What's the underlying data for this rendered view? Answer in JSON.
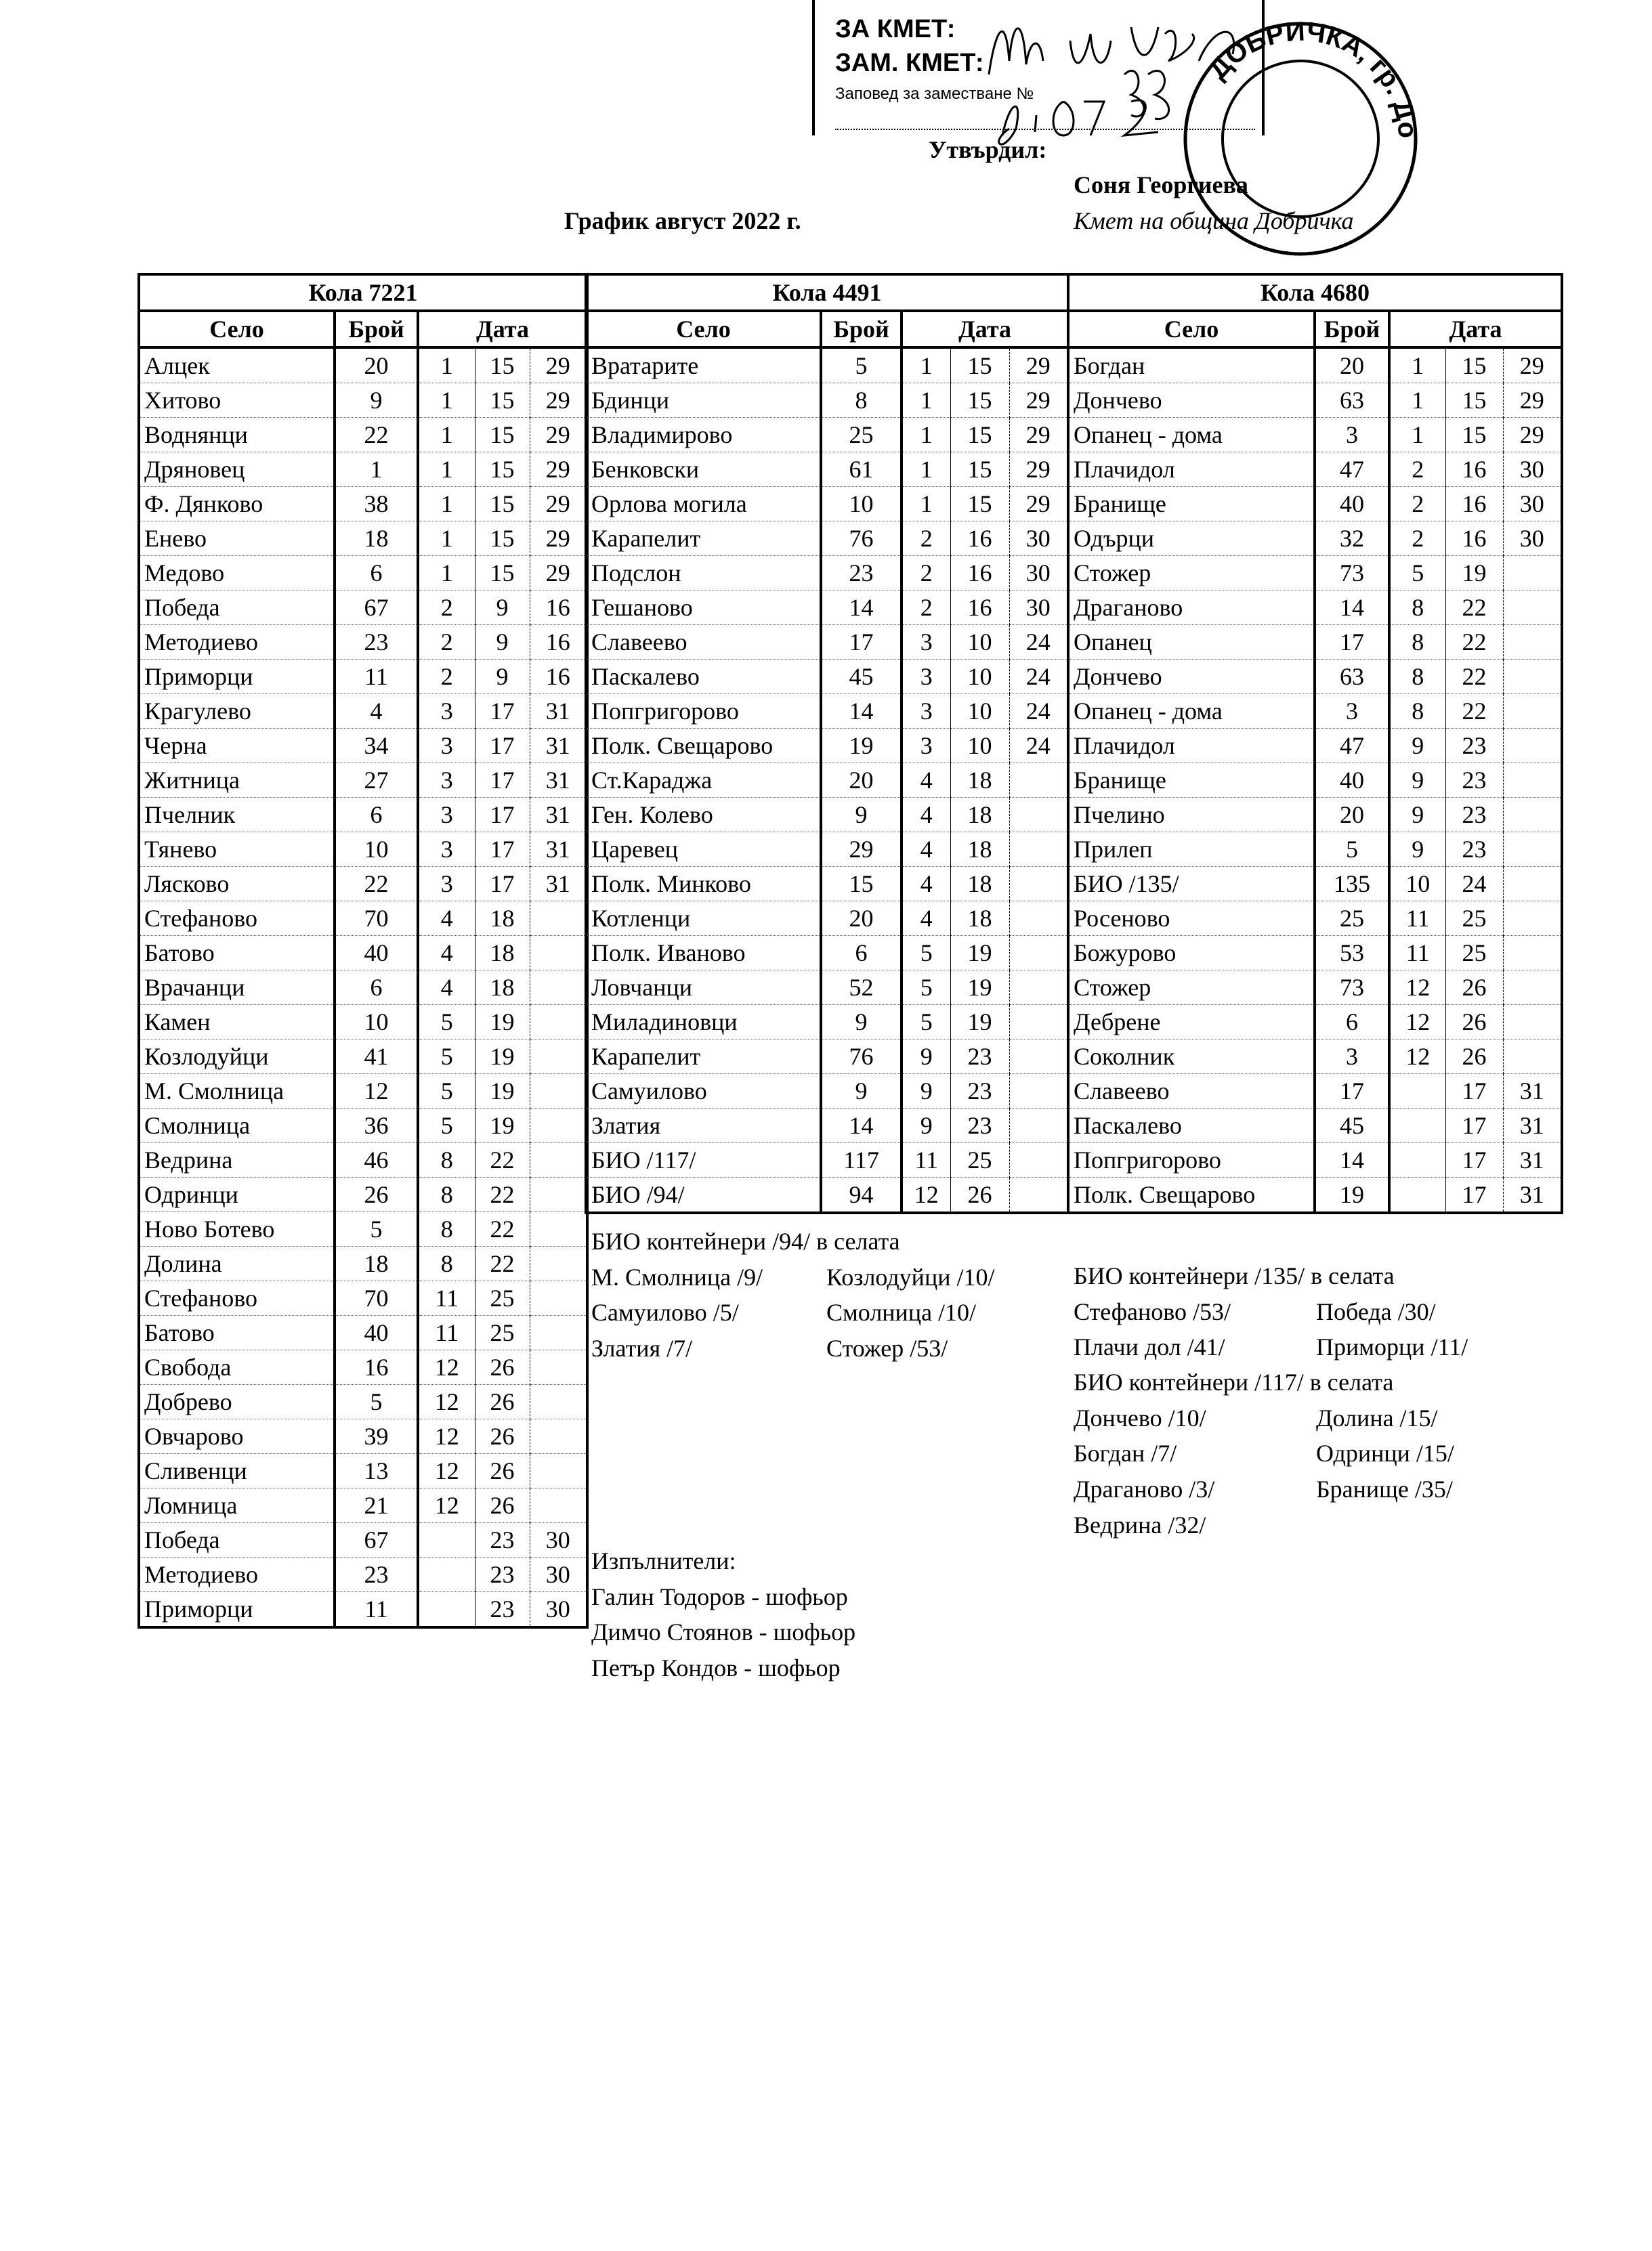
{
  "stamp": {
    "line1": "ЗА КМЕТ:",
    "line2": "ЗАМ. КМЕТ:",
    "line3": "Заповед за заместване №",
    "handwritten_number": "883",
    "handwritten_date": "25.07.22",
    "seal_text": "ДОБРИЧКА, гр. Добрич"
  },
  "header": {
    "approved_label": "Утвърдил:",
    "signer_name": "Соня Георгиева",
    "signer_role": "Кмет  на община Добричка",
    "title": "График август 2022 г."
  },
  "column_headers": {
    "village": "Село",
    "count": "Брой",
    "date": "Дата"
  },
  "tables": [
    {
      "title": "Кола 7221",
      "rows": [
        [
          "Алцек",
          "20",
          "1",
          "15",
          "29"
        ],
        [
          "Хитово",
          "9",
          "1",
          "15",
          "29"
        ],
        [
          "Воднянци",
          "22",
          "1",
          "15",
          "29"
        ],
        [
          "Дряновец",
          "1",
          "1",
          "15",
          "29"
        ],
        [
          "Ф. Дянково",
          "38",
          "1",
          "15",
          "29"
        ],
        [
          "Енево",
          "18",
          "1",
          "15",
          "29"
        ],
        [
          "Медово",
          "6",
          "1",
          "15",
          "29"
        ],
        [
          "Победа",
          "67",
          "2",
          "9",
          "16"
        ],
        [
          "Методиево",
          "23",
          "2",
          "9",
          "16"
        ],
        [
          "Приморци",
          "11",
          "2",
          "9",
          "16"
        ],
        [
          "Крагулево",
          "4",
          "3",
          "17",
          "31"
        ],
        [
          "Черна",
          "34",
          "3",
          "17",
          "31"
        ],
        [
          "Житница",
          "27",
          "3",
          "17",
          "31"
        ],
        [
          "Пчелник",
          "6",
          "3",
          "17",
          "31"
        ],
        [
          "Тянево",
          "10",
          "3",
          "17",
          "31"
        ],
        [
          "Лясково",
          "22",
          "3",
          "17",
          "31"
        ],
        [
          "Стефаново",
          "70",
          "4",
          "18",
          ""
        ],
        [
          "Батово",
          "40",
          "4",
          "18",
          ""
        ],
        [
          "Врачанци",
          "6",
          "4",
          "18",
          ""
        ],
        [
          "Камен",
          "10",
          "5",
          "19",
          ""
        ],
        [
          "Козлодуйци",
          "41",
          "5",
          "19",
          ""
        ],
        [
          "М. Смолница",
          "12",
          "5",
          "19",
          ""
        ],
        [
          "Смолница",
          "36",
          "5",
          "19",
          ""
        ],
        [
          "Ведрина",
          "46",
          "8",
          "22",
          ""
        ],
        [
          "Одринци",
          "26",
          "8",
          "22",
          ""
        ],
        [
          "Ново Ботево",
          "5",
          "8",
          "22",
          ""
        ],
        [
          "Долина",
          "18",
          "8",
          "22",
          ""
        ],
        [
          "Стефаново",
          "70",
          "11",
          "25",
          ""
        ],
        [
          "Батово",
          "40",
          "11",
          "25",
          ""
        ],
        [
          "Свобода",
          "16",
          "12",
          "26",
          ""
        ],
        [
          "Добрево",
          "5",
          "12",
          "26",
          ""
        ],
        [
          "Овчарово",
          "39",
          "12",
          "26",
          ""
        ],
        [
          "Сливенци",
          "13",
          "12",
          "26",
          ""
        ],
        [
          "Ломница",
          "21",
          "12",
          "26",
          ""
        ],
        [
          "Победа",
          "67",
          "",
          "23",
          "30"
        ],
        [
          "Методиево",
          "23",
          "",
          "23",
          "30"
        ],
        [
          "Приморци",
          "11",
          "",
          "23",
          "30"
        ]
      ]
    },
    {
      "title": "Кола 4491",
      "rows": [
        [
          "Вратарите",
          "5",
          "1",
          "15",
          "29"
        ],
        [
          "Бдинци",
          "8",
          "1",
          "15",
          "29"
        ],
        [
          "Владимирово",
          "25",
          "1",
          "15",
          "29"
        ],
        [
          "Бенковски",
          "61",
          "1",
          "15",
          "29"
        ],
        [
          "Орлова могила",
          "10",
          "1",
          "15",
          "29"
        ],
        [
          "Карапелит",
          "76",
          "2",
          "16",
          "30"
        ],
        [
          "Подслон",
          "23",
          "2",
          "16",
          "30"
        ],
        [
          "Гешаново",
          "14",
          "2",
          "16",
          "30"
        ],
        [
          "Славеево",
          "17",
          "3",
          "10",
          "24"
        ],
        [
          "Паскалево",
          "45",
          "3",
          "10",
          "24"
        ],
        [
          "Попгригорово",
          "14",
          "3",
          "10",
          "24"
        ],
        [
          "Полк. Свещарово",
          "19",
          "3",
          "10",
          "24"
        ],
        [
          "Ст.Караджа",
          "20",
          "4",
          "18",
          ""
        ],
        [
          "Ген. Колево",
          "9",
          "4",
          "18",
          ""
        ],
        [
          "Царевец",
          "29",
          "4",
          "18",
          ""
        ],
        [
          "Полк. Минково",
          "15",
          "4",
          "18",
          ""
        ],
        [
          "Котленци",
          "20",
          "4",
          "18",
          ""
        ],
        [
          "Полк. Иваново",
          "6",
          "5",
          "19",
          ""
        ],
        [
          "Ловчанци",
          "52",
          "5",
          "19",
          ""
        ],
        [
          "Миладиновци",
          "9",
          "5",
          "19",
          ""
        ],
        [
          "Карапелит",
          "76",
          "9",
          "23",
          ""
        ],
        [
          "Самуилово",
          "9",
          "9",
          "23",
          ""
        ],
        [
          "Златия",
          "14",
          "9",
          "23",
          ""
        ],
        [
          "БИО /117/",
          "117",
          "11",
          "25",
          ""
        ],
        [
          "БИО /94/",
          "94",
          "12",
          "26",
          ""
        ]
      ]
    },
    {
      "title": "Кола 4680",
      "rows": [
        [
          "Богдан",
          "20",
          "1",
          "15",
          "29"
        ],
        [
          "Дончево",
          "63",
          "1",
          "15",
          "29"
        ],
        [
          "Опанец - дома",
          "3",
          "1",
          "15",
          "29"
        ],
        [
          "Плачидол",
          "47",
          "2",
          "16",
          "30"
        ],
        [
          "Бранище",
          "40",
          "2",
          "16",
          "30"
        ],
        [
          "Одърци",
          "32",
          "2",
          "16",
          "30"
        ],
        [
          "Стожер",
          "73",
          "5",
          "19",
          ""
        ],
        [
          "Драганово",
          "14",
          "8",
          "22",
          ""
        ],
        [
          "Опанец",
          "17",
          "8",
          "22",
          ""
        ],
        [
          "Дончево",
          "63",
          "8",
          "22",
          ""
        ],
        [
          "Опанец - дома",
          "3",
          "8",
          "22",
          ""
        ],
        [
          "Плачидол",
          "47",
          "9",
          "23",
          ""
        ],
        [
          "Бранище",
          "40",
          "9",
          "23",
          ""
        ],
        [
          "Пчелино",
          "20",
          "9",
          "23",
          ""
        ],
        [
          "Прилеп",
          "5",
          "9",
          "23",
          ""
        ],
        [
          "БИО /135/",
          "135",
          "10",
          "24",
          ""
        ],
        [
          "Росеново",
          "25",
          "11",
          "25",
          ""
        ],
        [
          "Божурово",
          "53",
          "11",
          "25",
          ""
        ],
        [
          "Стожер",
          "73",
          "12",
          "26",
          ""
        ],
        [
          "Дебрене",
          "6",
          "12",
          "26",
          ""
        ],
        [
          "Соколник",
          "3",
          "12",
          "26",
          ""
        ],
        [
          "Славеево",
          "17",
          "",
          "17",
          "31"
        ],
        [
          "Паскалево",
          "45",
          "",
          "17",
          "31"
        ],
        [
          "Попгригорово",
          "14",
          "",
          "17",
          "31"
        ],
        [
          "Полк. Свещарово",
          "19",
          "",
          "17",
          "31"
        ]
      ]
    }
  ],
  "notes": {
    "bio94": {
      "title": "БИО контейнери /94/ в селата",
      "pairs": [
        [
          "М. Смолница /9/",
          "Козлодуйци /10/"
        ],
        [
          "Самуилово /5/",
          "Смолница /10/"
        ],
        [
          "Златия /7/",
          "Стожер /53/"
        ]
      ]
    },
    "bio135": {
      "title": "БИО контейнери /135/ в селата",
      "pairs": [
        [
          "Стефаново /53/",
          "Победа /30/"
        ],
        [
          "Плачи дол /41/",
          "Приморци /11/"
        ]
      ]
    },
    "bio117": {
      "title": "БИО контейнери /117/ в селата",
      "pairs": [
        [
          "Дончево /10/",
          "Долина /15/"
        ],
        [
          "Богдан /7/",
          "Одринци /15/"
        ],
        [
          "Драганово /3/",
          "Бранище /35/"
        ],
        [
          "Ведрина /32/",
          ""
        ]
      ]
    },
    "executors": {
      "title": "Изпълнители:",
      "items": [
        "Галин Тодоров - шофьор",
        "Димчо Стоянов - шофьор",
        "Петър Кондов - шофьор"
      ]
    }
  }
}
